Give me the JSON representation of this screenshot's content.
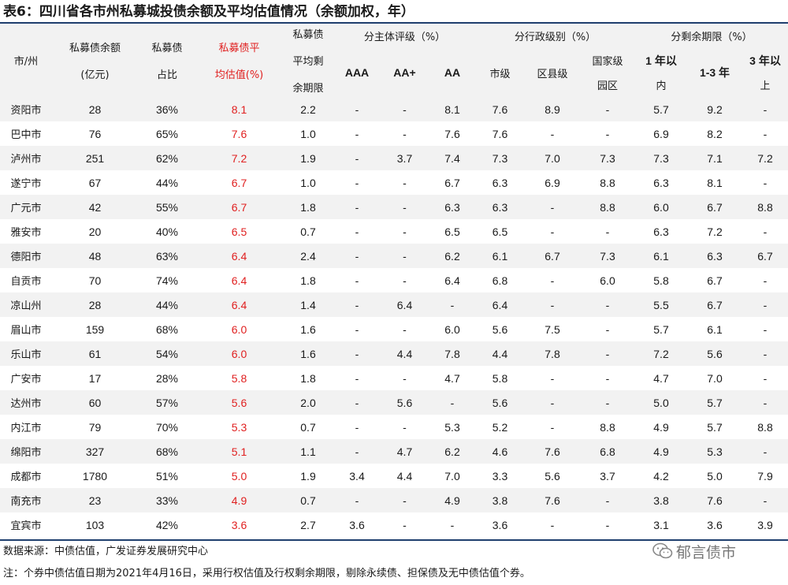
{
  "title": "表6：四川省各市州私募城投债余额及平均估值情况（余额加权，年）",
  "header": {
    "city": "市/州",
    "balance": [
      "私募债余额",
      "(亿元)"
    ],
    "share": [
      "私募债",
      "占比"
    ],
    "valuation": [
      "私募债平",
      "均估值(%)"
    ],
    "remaining": [
      "私募债",
      "平均剩",
      "余期限"
    ],
    "rating_group": "分主体评级（%）",
    "admin_group": "分行政级别（%）",
    "term_group": "分剩余期限（%）",
    "rating_cols": [
      "AAA",
      "AA+",
      "AA"
    ],
    "admin_cols": [
      "市级",
      "区县级"
    ],
    "admin_national": [
      "国家级",
      "园区"
    ],
    "term_1y": [
      "1 年以",
      "内"
    ],
    "term_1to3": "1-3 年",
    "term_3y": [
      "3 年以",
      "上"
    ]
  },
  "rows": [
    [
      "资阳市",
      "28",
      "36%",
      "8.1",
      "2.2",
      "-",
      "-",
      "8.1",
      "7.6",
      "8.9",
      "-",
      "5.7",
      "9.2",
      "-"
    ],
    [
      "巴中市",
      "76",
      "65%",
      "7.6",
      "1.0",
      "-",
      "-",
      "7.6",
      "7.6",
      "-",
      "-",
      "6.9",
      "8.2",
      "-"
    ],
    [
      "泸州市",
      "251",
      "62%",
      "7.2",
      "1.9",
      "-",
      "3.7",
      "7.4",
      "7.3",
      "7.0",
      "7.3",
      "7.3",
      "7.1",
      "7.2"
    ],
    [
      "遂宁市",
      "67",
      "44%",
      "6.7",
      "1.0",
      "-",
      "-",
      "6.7",
      "6.3",
      "6.9",
      "8.8",
      "6.3",
      "8.1",
      "-"
    ],
    [
      "广元市",
      "42",
      "55%",
      "6.7",
      "1.8",
      "-",
      "-",
      "6.3",
      "6.3",
      "-",
      "8.8",
      "6.0",
      "6.7",
      "8.8"
    ],
    [
      "雅安市",
      "20",
      "40%",
      "6.5",
      "0.7",
      "-",
      "-",
      "6.5",
      "6.5",
      "-",
      "-",
      "6.3",
      "7.2",
      "-"
    ],
    [
      "德阳市",
      "48",
      "63%",
      "6.4",
      "2.4",
      "-",
      "-",
      "6.2",
      "6.1",
      "6.7",
      "7.3",
      "6.1",
      "6.3",
      "6.7"
    ],
    [
      "自贡市",
      "70",
      "74%",
      "6.4",
      "1.8",
      "-",
      "-",
      "6.4",
      "6.8",
      "-",
      "6.0",
      "5.8",
      "6.7",
      "-"
    ],
    [
      "凉山州",
      "28",
      "44%",
      "6.4",
      "1.4",
      "-",
      "6.4",
      "-",
      "6.4",
      "-",
      "-",
      "5.5",
      "6.7",
      "-"
    ],
    [
      "眉山市",
      "159",
      "68%",
      "6.0",
      "1.6",
      "-",
      "-",
      "6.0",
      "5.6",
      "7.5",
      "-",
      "5.7",
      "6.1",
      "-"
    ],
    [
      "乐山市",
      "61",
      "54%",
      "6.0",
      "1.6",
      "-",
      "4.4",
      "7.8",
      "4.4",
      "7.8",
      "-",
      "7.2",
      "5.6",
      "-"
    ],
    [
      "广安市",
      "17",
      "28%",
      "5.8",
      "1.8",
      "-",
      "-",
      "4.7",
      "5.8",
      "-",
      "-",
      "4.7",
      "7.0",
      "-"
    ],
    [
      "达州市",
      "60",
      "57%",
      "5.6",
      "2.0",
      "-",
      "5.6",
      "-",
      "5.6",
      "-",
      "-",
      "5.0",
      "5.7",
      "-"
    ],
    [
      "内江市",
      "79",
      "70%",
      "5.3",
      "0.7",
      "-",
      "-",
      "5.3",
      "5.2",
      "-",
      "8.8",
      "4.9",
      "5.7",
      "8.8"
    ],
    [
      "绵阳市",
      "327",
      "68%",
      "5.1",
      "1.1",
      "-",
      "4.7",
      "6.2",
      "4.6",
      "7.6",
      "6.8",
      "4.9",
      "5.3",
      "-"
    ],
    [
      "成都市",
      "1780",
      "51%",
      "5.0",
      "1.9",
      "3.4",
      "4.4",
      "7.0",
      "3.3",
      "5.6",
      "3.7",
      "4.2",
      "5.0",
      "7.9"
    ],
    [
      "南充市",
      "23",
      "33%",
      "4.9",
      "0.7",
      "-",
      "-",
      "4.9",
      "3.8",
      "7.6",
      "-",
      "3.8",
      "7.6",
      "-"
    ],
    [
      "宜宾市",
      "103",
      "42%",
      "3.6",
      "2.7",
      "3.6",
      "-",
      "-",
      "3.6",
      "-",
      "-",
      "3.1",
      "3.6",
      "3.9"
    ]
  ],
  "source": "数据来源：中债估值，广发证券发展研究中心",
  "note": "注：个券中债估值日期为2021年4月16日，采用行权估值及行权剩余期限，剔除永续债、担保债及无中债估值个券。",
  "logo_text": "郁言债市",
  "colors": {
    "accent_red": "#e02020",
    "rule_blue": "#1f3f6e",
    "stripe_gray": "#f2f2f2"
  }
}
